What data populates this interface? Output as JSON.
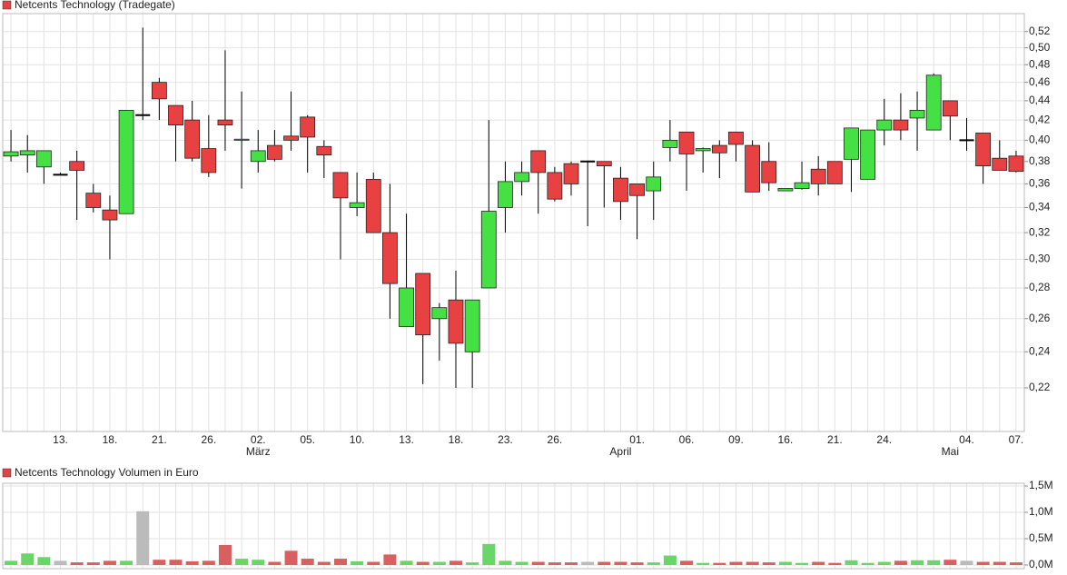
{
  "chart_data": [
    {
      "type": "candlestick",
      "title": "Netcents Technology (Tradegate)",
      "categories": [
        null,
        null,
        null,
        "13.",
        null,
        null,
        "18.",
        null,
        null,
        "21.",
        null,
        null,
        "26.",
        null,
        null,
        "02.",
        null,
        null,
        "05.",
        null,
        null,
        "10.",
        null,
        null,
        "13.",
        null,
        null,
        "18.",
        null,
        null,
        "23.",
        null,
        null,
        "26.",
        null,
        null,
        null,
        null,
        "01.",
        null,
        null,
        "06.",
        null,
        null,
        "09.",
        null,
        null,
        "16.",
        null,
        null,
        "21.",
        null,
        null,
        "24.",
        null,
        null,
        null,
        null,
        "04.",
        null,
        null,
        "07.",
        null
      ],
      "months": [
        null,
        null,
        null,
        null,
        null,
        null,
        null,
        null,
        null,
        null,
        null,
        null,
        null,
        null,
        null,
        "März",
        null,
        null,
        null,
        null,
        null,
        null,
        null,
        null,
        null,
        null,
        null,
        null,
        null,
        null,
        null,
        null,
        null,
        null,
        null,
        null,
        null,
        "April",
        null,
        null,
        null,
        null,
        null,
        null,
        null,
        null,
        null,
        null,
        null,
        null,
        null,
        null,
        null,
        null,
        null,
        null,
        null,
        "Mai",
        null,
        null,
        null,
        null
      ],
      "open": [
        0.385,
        0.386,
        0.375,
        0.368,
        0.38,
        0.352,
        0.338,
        0.335,
        0.425,
        0.46,
        0.435,
        0.42,
        0.392,
        0.42,
        0.4,
        0.38,
        0.395,
        0.404,
        0.423,
        0.394,
        0.37,
        0.34,
        0.364,
        0.32,
        0.255,
        0.29,
        0.26,
        0.272,
        0.24,
        0.28,
        0.34,
        0.362,
        0.39,
        0.37,
        0.378,
        0.38,
        0.38,
        0.365,
        0.36,
        0.354,
        0.393,
        0.408,
        0.39,
        0.395,
        0.408,
        0.395,
        0.38,
        0.354,
        0.356,
        0.373,
        0.38,
        0.382,
        0.364,
        0.41,
        0.42,
        0.422,
        0.41,
        0.44,
        0.4,
        0.407,
        0.383,
        0.385
      ],
      "high": [
        0.41,
        0.405,
        0.39,
        0.37,
        0.39,
        0.36,
        0.35,
        0.43,
        0.525,
        0.465,
        0.435,
        0.44,
        0.425,
        0.497,
        0.45,
        0.41,
        0.41,
        0.45,
        0.425,
        0.4,
        0.37,
        0.37,
        0.37,
        0.36,
        0.335,
        0.29,
        0.27,
        0.292,
        0.272,
        0.42,
        0.38,
        0.38,
        0.39,
        0.375,
        0.38,
        0.38,
        0.38,
        0.375,
        0.36,
        0.38,
        0.42,
        0.408,
        0.393,
        0.4,
        0.408,
        0.4,
        0.398,
        0.356,
        0.38,
        0.385,
        0.38,
        0.412,
        0.41,
        0.442,
        0.448,
        0.45,
        0.47,
        0.44,
        0.422,
        0.407,
        0.4,
        0.39
      ],
      "low": [
        0.38,
        0.37,
        0.36,
        0.368,
        0.33,
        0.336,
        0.3,
        0.335,
        0.42,
        0.42,
        0.38,
        0.38,
        0.366,
        0.39,
        0.356,
        0.37,
        0.38,
        0.39,
        0.37,
        0.365,
        0.3,
        0.333,
        0.32,
        0.26,
        0.255,
        0.222,
        0.235,
        0.22,
        0.22,
        0.28,
        0.32,
        0.35,
        0.335,
        0.345,
        0.35,
        0.325,
        0.34,
        0.33,
        0.315,
        0.33,
        0.38,
        0.354,
        0.37,
        0.365,
        0.38,
        0.353,
        0.354,
        0.354,
        0.355,
        0.35,
        0.36,
        0.353,
        0.364,
        0.395,
        0.4,
        0.39,
        0.41,
        0.4,
        0.39,
        0.36,
        0.372,
        0.37
      ],
      "close": [
        0.389,
        0.39,
        0.39,
        0.368,
        0.372,
        0.34,
        0.33,
        0.43,
        0.425,
        0.442,
        0.415,
        0.383,
        0.37,
        0.415,
        0.401,
        0.39,
        0.382,
        0.4,
        0.403,
        0.386,
        0.348,
        0.344,
        0.32,
        0.283,
        0.28,
        0.25,
        0.267,
        0.245,
        0.272,
        0.337,
        0.362,
        0.37,
        0.37,
        0.347,
        0.36,
        0.38,
        0.376,
        0.345,
        0.35,
        0.366,
        0.4,
        0.387,
        0.392,
        0.388,
        0.396,
        0.353,
        0.361,
        0.356,
        0.361,
        0.36,
        0.36,
        0.412,
        0.41,
        0.42,
        0.41,
        0.43,
        0.468,
        0.424,
        0.4,
        0.376,
        0.372,
        0.371
      ],
      "up_color": "#44e044",
      "down_color": "#e84141",
      "flat_color": "#000000",
      "log_scale": true,
      "grid": true,
      "ylim": [
        0.198,
        0.543
      ],
      "yticks": [
        {
          "value": 0.22,
          "label": "0,22"
        },
        {
          "value": 0.24,
          "label": "0,24"
        },
        {
          "value": 0.26,
          "label": "0,26"
        },
        {
          "value": 0.28,
          "label": "0,28"
        },
        {
          "value": 0.3,
          "label": "0,30"
        },
        {
          "value": 0.32,
          "label": "0,32"
        },
        {
          "value": 0.34,
          "label": "0,34"
        },
        {
          "value": 0.36,
          "label": "0,36"
        },
        {
          "value": 0.38,
          "label": "0,38"
        },
        {
          "value": 0.4,
          "label": "0,40"
        },
        {
          "value": 0.42,
          "label": "0,42"
        },
        {
          "value": 0.44,
          "label": "0,44"
        },
        {
          "value": 0.46,
          "label": "0,46"
        },
        {
          "value": 0.48,
          "label": "0,48"
        },
        {
          "value": 0.5,
          "label": "0,50"
        },
        {
          "value": 0.52,
          "label": "0,52"
        }
      ]
    },
    {
      "type": "bar",
      "title": "Netcents Technology Volumen in Euro",
      "values": [
        0.08,
        0.22,
        0.15,
        0.08,
        0.05,
        0.05,
        0.08,
        0.08,
        1.02,
        0.1,
        0.1,
        0.07,
        0.08,
        0.38,
        0.12,
        0.1,
        0.06,
        0.27,
        0.12,
        0.06,
        0.12,
        0.07,
        0.06,
        0.2,
        0.08,
        0.06,
        0.06,
        0.08,
        0.05,
        0.4,
        0.08,
        0.06,
        0.06,
        0.05,
        0.05,
        0.06,
        0.06,
        0.06,
        0.05,
        0.05,
        0.18,
        0.08,
        0.04,
        0.04,
        0.06,
        0.06,
        0.05,
        0.06,
        0.04,
        0.06,
        0.04,
        0.09,
        0.04,
        0.06,
        0.08,
        0.09,
        0.09,
        0.1,
        0.08,
        0.06,
        0.06,
        0.05
      ],
      "up_color": "#6ad66a",
      "down_color": "#d96060",
      "flat_color": "#bbbbbb",
      "grid": true,
      "ylim": [
        0,
        1.5
      ],
      "yticks": [
        {
          "value": 0,
          "label": "0,0M"
        },
        {
          "value": 0.5,
          "label": "0,5M"
        },
        {
          "value": 1.0,
          "label": "1,0M"
        },
        {
          "value": 1.5,
          "label": "1,5M"
        }
      ]
    }
  ]
}
